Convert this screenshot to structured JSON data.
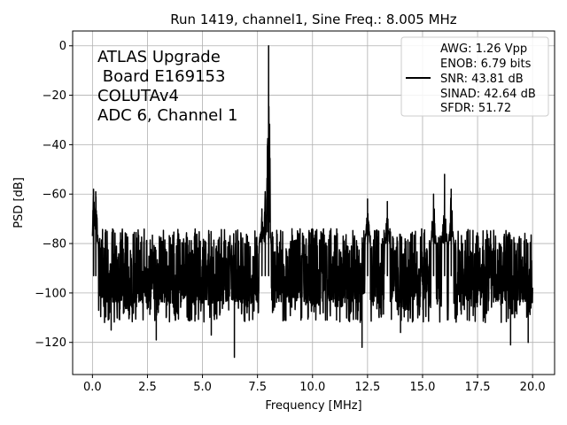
{
  "chart_data": {
    "type": "line",
    "title": "Run 1419, channel1, Sine Freq.: 8.005 MHz",
    "xlabel": "Frequency [MHz]",
    "ylabel": "PSD [dB]",
    "xlim": [
      -0.9,
      21.0
    ],
    "ylim": [
      -133,
      6
    ],
    "xticks": [
      0.0,
      2.5,
      5.0,
      7.5,
      10.0,
      12.5,
      15.0,
      17.5,
      20.0
    ],
    "xtick_labels": [
      "0.0",
      "2.5",
      "5.0",
      "7.5",
      "10.0",
      "12.5",
      "15.0",
      "17.5",
      "20.0"
    ],
    "yticks": [
      0,
      -20,
      -40,
      -60,
      -80,
      -100,
      -120
    ],
    "ytick_labels": [
      "0",
      "−20",
      "−40",
      "−60",
      "−80",
      "−100",
      "−120"
    ],
    "grid": true,
    "annotation_lines": [
      "ATLAS Upgrade",
      " Board E169153",
      "COLUTAv4",
      "ADC 6, Channel 1"
    ],
    "legend": {
      "placement": "top-right",
      "entries": [
        "AWG: 1.26 Vpp",
        "ENOB: 6.79 bits",
        "SNR: 43.81 dB",
        "SINAD: 42.64 dB",
        "SFDR: 51.72"
      ]
    },
    "series": [
      {
        "name": "PSD",
        "color": "#000000",
        "noise_floor_db": -93,
        "noise_range_db": [
          -112,
          -74
        ],
        "peaks": [
          {
            "x": 8.005,
            "y": 0
          },
          {
            "x": 0.05,
            "y": -58
          },
          {
            "x": 0.15,
            "y": -59
          },
          {
            "x": 7.85,
            "y": -59
          },
          {
            "x": 7.7,
            "y": -66
          },
          {
            "x": 16.0,
            "y": -52
          },
          {
            "x": 15.5,
            "y": -60
          },
          {
            "x": 16.3,
            "y": -58
          },
          {
            "x": 12.5,
            "y": -62
          },
          {
            "x": 13.4,
            "y": -63
          }
        ],
        "dips": [
          {
            "x": 6.45,
            "y": -126
          },
          {
            "x": 12.25,
            "y": -122
          },
          {
            "x": 19.0,
            "y": -121
          },
          {
            "x": 19.8,
            "y": -120
          },
          {
            "x": 2.9,
            "y": -119
          },
          {
            "x": 0.85,
            "y": -115
          },
          {
            "x": 5.4,
            "y": -117
          },
          {
            "x": 14.0,
            "y": -116
          }
        ]
      }
    ]
  }
}
